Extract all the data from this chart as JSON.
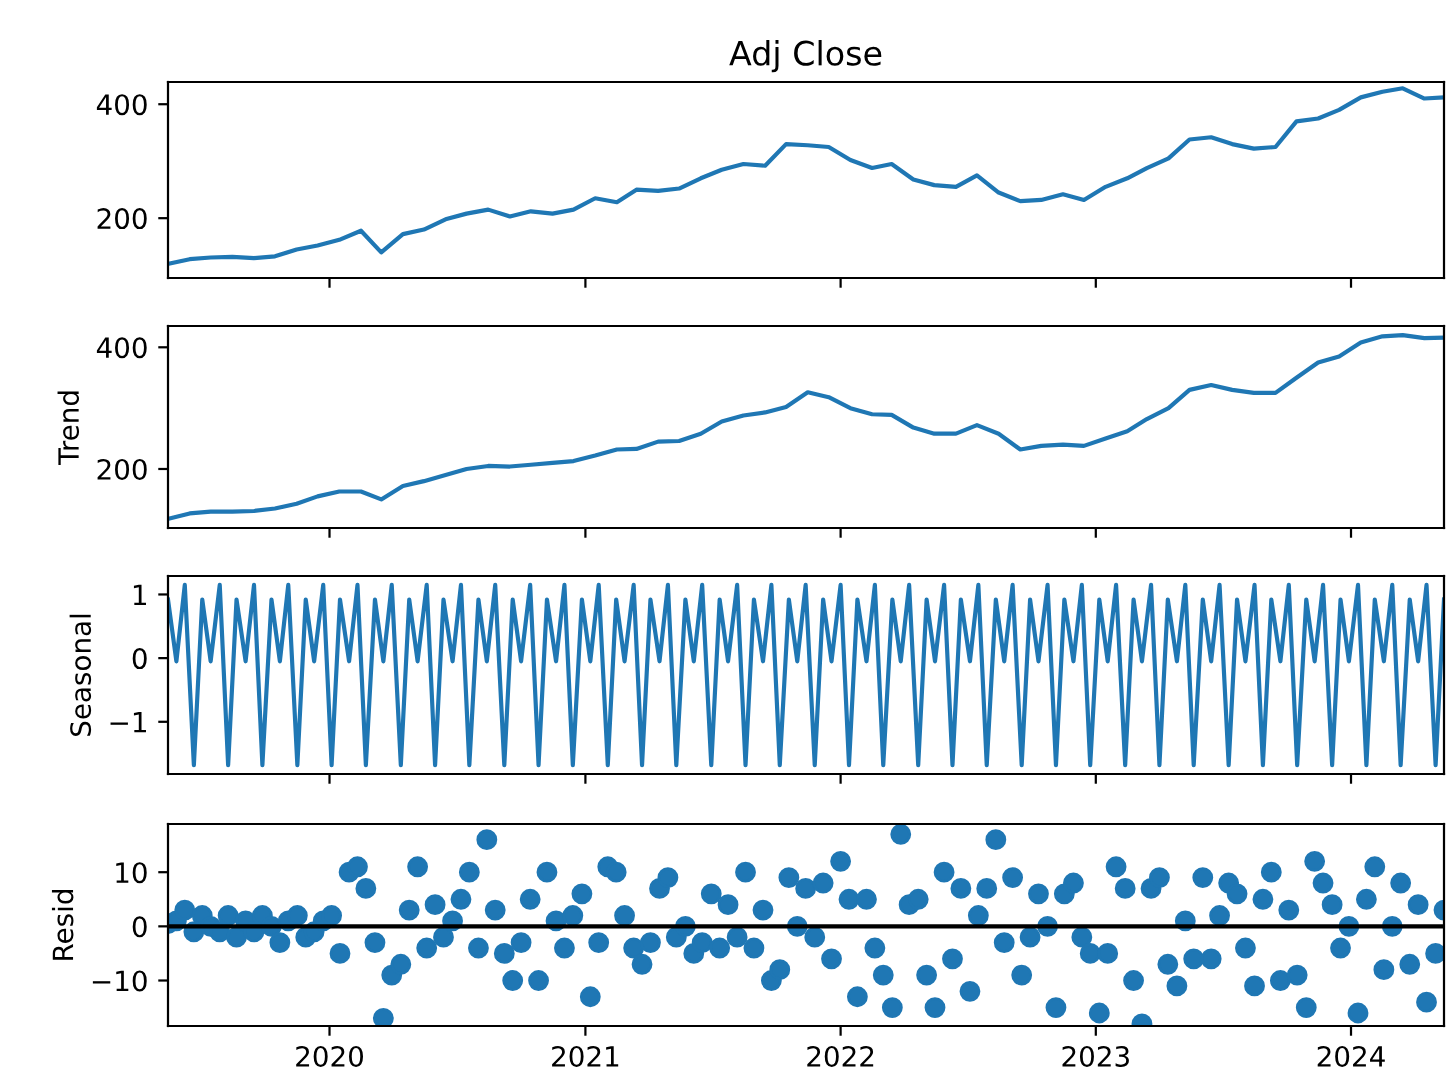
{
  "chart_data": [
    {
      "type": "line",
      "title": "Adj Close",
      "x": [
        "2019-05-15",
        "2019-06-15",
        "2019-07-15",
        "2019-08-15",
        "2019-09-15",
        "2019-10-15",
        "2019-11-15",
        "2019-12-15",
        "2020-01-15",
        "2020-02-15",
        "2020-03-15",
        "2020-04-15",
        "2020-05-15",
        "2020-06-15",
        "2020-07-15",
        "2020-08-15",
        "2020-09-15",
        "2020-10-15",
        "2020-11-15",
        "2020-12-15",
        "2021-01-15",
        "2021-02-15",
        "2021-03-15",
        "2021-04-15",
        "2021-05-15",
        "2021-06-15",
        "2021-07-15",
        "2021-08-15",
        "2021-09-15",
        "2021-10-15",
        "2021-11-15",
        "2021-12-15",
        "2022-01-15",
        "2022-02-15",
        "2022-03-15",
        "2022-04-15",
        "2022-05-15",
        "2022-06-15",
        "2022-07-15",
        "2022-08-15",
        "2022-09-15",
        "2022-10-15",
        "2022-11-15",
        "2022-12-15",
        "2023-01-15",
        "2023-02-15",
        "2023-03-15",
        "2023-04-15",
        "2023-05-15",
        "2023-06-15",
        "2023-07-15",
        "2023-08-15",
        "2023-09-15",
        "2023-10-15",
        "2023-11-15",
        "2023-12-15",
        "2024-01-15",
        "2024-02-15",
        "2024-03-15",
        "2024-04-15",
        "2024-05-13"
      ],
      "series": [
        {
          "color": "#1f77b4",
          "values": [
            120,
            128,
            131,
            132,
            130,
            133,
            145,
            152,
            162,
            178,
            140,
            172,
            180,
            198,
            208,
            215,
            203,
            212,
            208,
            215,
            235,
            228,
            250,
            248,
            252,
            270,
            285,
            295,
            292,
            330,
            328,
            325,
            302,
            288,
            295,
            268,
            258,
            255,
            275,
            245,
            230,
            232,
            242,
            232,
            255,
            270,
            288,
            305,
            338,
            342,
            330,
            322,
            325,
            370,
            375,
            390,
            412,
            422,
            428,
            410,
            412
          ]
        }
      ],
      "xlim": [
        "2019-05-15",
        "2024-05-13"
      ],
      "xticks": [
        "2020",
        "2021",
        "2022",
        "2023",
        "2024"
      ],
      "ylim": [
        95,
        439
      ],
      "yticks": [
        200,
        400
      ],
      "tick_labels": "y"
    },
    {
      "type": "line",
      "ylabel": "Trend",
      "x": [
        "2019-05-15",
        "2019-06-15",
        "2019-07-15",
        "2019-08-15",
        "2019-09-15",
        "2019-10-15",
        "2019-11-15",
        "2019-12-15",
        "2020-01-15",
        "2020-02-15",
        "2020-03-15",
        "2020-04-15",
        "2020-05-15",
        "2020-06-15",
        "2020-07-15",
        "2020-08-15",
        "2020-09-15",
        "2020-10-15",
        "2020-11-15",
        "2020-12-15",
        "2021-01-15",
        "2021-02-15",
        "2021-03-15",
        "2021-04-15",
        "2021-05-15",
        "2021-06-15",
        "2021-07-15",
        "2021-08-15",
        "2021-09-15",
        "2021-10-15",
        "2021-11-15",
        "2021-12-15",
        "2022-01-15",
        "2022-02-15",
        "2022-03-15",
        "2022-04-15",
        "2022-05-15",
        "2022-06-15",
        "2022-07-15",
        "2022-08-15",
        "2022-09-15",
        "2022-10-15",
        "2022-11-15",
        "2022-12-15",
        "2023-01-15",
        "2023-02-15",
        "2023-03-15",
        "2023-04-15",
        "2023-05-15",
        "2023-06-15",
        "2023-07-15",
        "2023-08-15",
        "2023-09-15",
        "2023-10-15",
        "2023-11-15",
        "2023-12-15",
        "2024-01-15",
        "2024-02-15",
        "2024-03-15",
        "2024-04-15",
        "2024-05-13"
      ],
      "series": [
        {
          "color": "#1f77b4",
          "values": [
            118,
            127,
            130,
            130,
            131,
            135,
            143,
            155,
            163,
            163,
            150,
            172,
            180,
            190,
            200,
            205,
            204,
            207,
            210,
            213,
            222,
            232,
            233,
            245,
            246,
            258,
            278,
            288,
            293,
            302,
            326,
            318,
            300,
            290,
            289,
            268,
            258,
            258,
            272,
            258,
            232,
            238,
            240,
            238,
            250,
            262,
            282,
            300,
            330,
            338,
            330,
            325,
            325,
            350,
            375,
            385,
            408,
            418,
            420,
            415,
            416
          ]
        }
      ],
      "xlim": [
        "2019-05-15",
        "2024-05-13"
      ],
      "xticks": [
        "2020",
        "2021",
        "2022",
        "2023",
        "2024"
      ],
      "ylim": [
        103,
        435
      ],
      "yticks": [
        200,
        400
      ],
      "tick_labels": "y"
    },
    {
      "type": "line",
      "ylabel": "Seasonal",
      "x": [
        "2019-05-15",
        "2019-05-27",
        "2019-06-08",
        "2019-06-21",
        "2019-07-03",
        "2019-07-15",
        "2019-07-28",
        "2019-08-09",
        "2019-08-21",
        "2019-09-03",
        "2019-09-15",
        "2019-09-27",
        "2019-10-10",
        "2019-10-22",
        "2019-11-03",
        "2019-11-16",
        "2019-11-28",
        "2019-12-10",
        "2019-12-23",
        "2020-01-04",
        "2020-01-16",
        "2020-01-29",
        "2020-02-10",
        "2020-02-22",
        "2020-03-06",
        "2020-03-18",
        "2020-03-30",
        "2020-04-12",
        "2020-04-24",
        "2020-05-06",
        "2020-05-19",
        "2020-05-31",
        "2020-06-12",
        "2020-06-25",
        "2020-07-07",
        "2020-07-19",
        "2020-08-01",
        "2020-08-13",
        "2020-08-25",
        "2020-09-07",
        "2020-09-19",
        "2020-10-01",
        "2020-10-14",
        "2020-10-26",
        "2020-11-07",
        "2020-11-20",
        "2020-12-02",
        "2020-12-14",
        "2020-12-27",
        "2021-01-08",
        "2021-01-20",
        "2021-02-02",
        "2021-02-14",
        "2021-02-26",
        "2021-03-11",
        "2021-03-23",
        "2021-04-04",
        "2021-04-17",
        "2021-04-29",
        "2021-05-11",
        "2021-05-24",
        "2021-06-05",
        "2021-06-17",
        "2021-06-30",
        "2021-07-12",
        "2021-07-24",
        "2021-08-06",
        "2021-08-18",
        "2021-08-30",
        "2021-09-12",
        "2021-09-24",
        "2021-10-06",
        "2021-10-19",
        "2021-10-31",
        "2021-11-12",
        "2021-11-25",
        "2021-12-07",
        "2021-12-19",
        "2022-01-01",
        "2022-01-13",
        "2022-01-25",
        "2022-02-07",
        "2022-02-19",
        "2022-03-03",
        "2022-03-16",
        "2022-03-28",
        "2022-04-09",
        "2022-04-22",
        "2022-05-04",
        "2022-05-16",
        "2022-05-29",
        "2022-06-10",
        "2022-06-22",
        "2022-07-05",
        "2022-07-17",
        "2022-07-29",
        "2022-08-11",
        "2022-08-23",
        "2022-09-04",
        "2022-09-17",
        "2022-09-29",
        "2022-10-11",
        "2022-10-24",
        "2022-11-05",
        "2022-11-17",
        "2022-11-30",
        "2022-12-12",
        "2022-12-24",
        "2023-01-06",
        "2023-01-18",
        "2023-01-30",
        "2023-02-12",
        "2023-02-24",
        "2023-03-08",
        "2023-03-21",
        "2023-04-02",
        "2023-04-14",
        "2023-04-27",
        "2023-05-09",
        "2023-05-21",
        "2023-06-03",
        "2023-06-15",
        "2023-06-27",
        "2023-07-10",
        "2023-07-22",
        "2023-08-03",
        "2023-08-16",
        "2023-08-28",
        "2023-09-09",
        "2023-09-22",
        "2023-10-04",
        "2023-10-16",
        "2023-10-29",
        "2023-11-10",
        "2023-11-22",
        "2023-12-05",
        "2023-12-17",
        "2023-12-29",
        "2024-01-11",
        "2024-01-23",
        "2024-02-04",
        "2024-02-17",
        "2024-02-29",
        "2024-03-12",
        "2024-03-25",
        "2024-04-06",
        "2024-04-18",
        "2024-05-01",
        "2024-05-13"
      ],
      "series": [
        {
          "color": "#1f77b4",
          "values": [
            0.92,
            -0.05,
            1.15,
            -1.68,
            0.92,
            -0.05,
            1.15,
            -1.68,
            0.92,
            -0.05,
            1.15,
            -1.68,
            0.92,
            -0.05,
            1.15,
            -1.68,
            0.92,
            -0.05,
            1.15,
            -1.68,
            0.92,
            -0.05,
            1.15,
            -1.68,
            0.92,
            -0.05,
            1.15,
            -1.68,
            0.92,
            -0.05,
            1.15,
            -1.68,
            0.92,
            -0.05,
            1.15,
            -1.68,
            0.92,
            -0.05,
            1.15,
            -1.68,
            0.92,
            -0.05,
            1.15,
            -1.68,
            0.92,
            -0.05,
            1.15,
            -1.68,
            0.92,
            -0.05,
            1.15,
            -1.68,
            0.92,
            -0.05,
            1.15,
            -1.68,
            0.92,
            -0.05,
            1.15,
            -1.68,
            0.92,
            -0.05,
            1.15,
            -1.68,
            0.92,
            -0.05,
            1.15,
            -1.68,
            0.92,
            -0.05,
            1.15,
            -1.68,
            0.92,
            -0.05,
            1.15,
            -1.68,
            0.92,
            -0.05,
            1.15,
            -1.68,
            0.92,
            -0.05,
            1.15,
            -1.68,
            0.92,
            -0.05,
            1.15,
            -1.68,
            0.92,
            -0.05,
            1.15,
            -1.68,
            0.92,
            -0.05,
            1.15,
            -1.68,
            0.92,
            -0.05,
            1.15,
            -1.68,
            0.92,
            -0.05,
            1.15,
            -1.68,
            0.92,
            -0.05,
            1.15,
            -1.68,
            0.92,
            -0.05,
            1.15,
            -1.68,
            0.92,
            -0.05,
            1.15,
            -1.68,
            0.92,
            -0.05,
            1.15,
            -1.68,
            0.92,
            -0.05,
            1.15,
            -1.68,
            0.92,
            -0.05,
            1.15,
            -1.68,
            0.92,
            -0.05,
            1.15,
            -1.68,
            0.92,
            -0.05,
            1.15,
            -1.68,
            0.92,
            -0.05,
            1.15,
            -1.68,
            0.92,
            -0.05,
            1.15,
            -1.68,
            0.92,
            -0.05,
            1.15,
            -1.68,
            0.92
          ]
        }
      ],
      "xlim": [
        "2019-05-15",
        "2024-05-13"
      ],
      "xticks": [
        "2020",
        "2021",
        "2022",
        "2023",
        "2024"
      ],
      "ylim": [
        -1.82,
        1.29
      ],
      "yticks": [
        {
          "value": -1,
          "label": "−1"
        },
        0,
        1
      ],
      "tick_labels": "y"
    },
    {
      "type": "scatter",
      "ylabel": "Resid",
      "marker": "circle",
      "x": [
        "2019-05-15",
        "2019-05-27",
        "2019-06-08",
        "2019-06-21",
        "2019-07-03",
        "2019-07-15",
        "2019-07-28",
        "2019-08-09",
        "2019-08-21",
        "2019-09-03",
        "2019-09-15",
        "2019-09-27",
        "2019-10-10",
        "2019-10-22",
        "2019-11-03",
        "2019-11-16",
        "2019-11-28",
        "2019-12-10",
        "2019-12-23",
        "2020-01-04",
        "2020-01-16",
        "2020-01-29",
        "2020-02-10",
        "2020-02-22",
        "2020-03-06",
        "2020-03-18",
        "2020-03-30",
        "2020-04-12",
        "2020-04-24",
        "2020-05-06",
        "2020-05-19",
        "2020-05-31",
        "2020-06-12",
        "2020-06-25",
        "2020-07-07",
        "2020-07-19",
        "2020-08-01",
        "2020-08-13",
        "2020-08-25",
        "2020-09-07",
        "2020-09-19",
        "2020-10-01",
        "2020-10-14",
        "2020-10-26",
        "2020-11-07",
        "2020-11-20",
        "2020-12-02",
        "2020-12-14",
        "2020-12-27",
        "2021-01-08",
        "2021-01-20",
        "2021-02-02",
        "2021-02-14",
        "2021-02-26",
        "2021-03-11",
        "2021-03-23",
        "2021-04-04",
        "2021-04-17",
        "2021-04-29",
        "2021-05-11",
        "2021-05-24",
        "2021-06-05",
        "2021-06-17",
        "2021-06-30",
        "2021-07-12",
        "2021-07-24",
        "2021-08-06",
        "2021-08-18",
        "2021-08-30",
        "2021-09-12",
        "2021-09-24",
        "2021-10-06",
        "2021-10-19",
        "2021-10-31",
        "2021-11-12",
        "2021-11-25",
        "2021-12-07",
        "2021-12-19",
        "2022-01-01",
        "2022-01-13",
        "2022-01-25",
        "2022-02-07",
        "2022-02-19",
        "2022-03-03",
        "2022-03-16",
        "2022-03-28",
        "2022-04-09",
        "2022-04-22",
        "2022-05-04",
        "2022-05-16",
        "2022-05-29",
        "2022-06-10",
        "2022-06-22",
        "2022-07-05",
        "2022-07-17",
        "2022-07-29",
        "2022-08-11",
        "2022-08-23",
        "2022-09-04",
        "2022-09-17",
        "2022-09-29",
        "2022-10-11",
        "2022-10-24",
        "2022-11-05",
        "2022-11-17",
        "2022-11-30",
        "2022-12-12",
        "2022-12-24",
        "2023-01-06",
        "2023-01-18",
        "2023-01-30",
        "2023-02-12",
        "2023-02-24",
        "2023-03-08",
        "2023-03-21",
        "2023-04-02",
        "2023-04-14",
        "2023-04-27",
        "2023-05-09",
        "2023-05-21",
        "2023-06-03",
        "2023-06-15",
        "2023-06-27",
        "2023-07-10",
        "2023-07-22",
        "2023-08-03",
        "2023-08-16",
        "2023-08-28",
        "2023-09-09",
        "2023-09-22",
        "2023-10-04",
        "2023-10-16",
        "2023-10-29",
        "2023-11-10",
        "2023-11-22",
        "2023-12-05",
        "2023-12-17",
        "2023-12-29",
        "2024-01-11",
        "2024-01-23",
        "2024-02-04",
        "2024-02-17",
        "2024-02-29",
        "2024-03-12",
        "2024-03-25",
        "2024-04-06",
        "2024-04-18",
        "2024-05-01",
        "2024-05-13"
      ],
      "series": [
        {
          "color": "#1f77b4",
          "values": [
            0.5,
            1,
            3,
            -1,
            2,
            0,
            -1,
            2,
            -2,
            1,
            -1,
            2,
            0,
            -3,
            1,
            2,
            -2,
            -1,
            1,
            2,
            -5,
            10,
            11,
            7,
            -3,
            -17,
            -9,
            -7,
            3,
            11,
            -4,
            4,
            -2,
            1,
            5,
            10,
            -4,
            16,
            3,
            -5,
            -10,
            -3,
            5,
            -10,
            10,
            1,
            -4,
            2,
            6,
            -13,
            -3,
            11,
            10,
            2,
            -4,
            -7,
            -3,
            7,
            9,
            -2,
            0,
            -5,
            -3,
            6,
            -4,
            4,
            -2,
            10,
            -4,
            3,
            -10,
            -8,
            9,
            0,
            7,
            -2,
            8,
            -6,
            12,
            5,
            -13,
            5,
            -4,
            -9,
            -15,
            17,
            4,
            5,
            -9,
            -15,
            10,
            -6,
            7,
            -12,
            2,
            7,
            16,
            -3,
            9,
            -9,
            -2,
            6,
            0,
            -15,
            6,
            8,
            -2,
            -5,
            -16,
            -5,
            11,
            7,
            -10,
            -18,
            7,
            9,
            -7,
            -11,
            1,
            -6,
            9,
            -6,
            2,
            8,
            6,
            -4,
            -11,
            5,
            10,
            -10,
            3,
            -9,
            -15,
            12,
            8,
            4,
            -4,
            0,
            -16,
            5,
            11,
            -8,
            0,
            8,
            -7,
            4,
            -14,
            -5,
            3
          ]
        }
      ],
      "ref_lines": [
        {
          "axis": "y",
          "value": 0,
          "color": "#000000"
        }
      ],
      "xlim": [
        "2019-05-15",
        "2024-05-13"
      ],
      "xticks": [
        "2020",
        "2021",
        "2022",
        "2023",
        "2024"
      ],
      "ylim": [
        -18.4,
        18.9
      ],
      "yticks": [
        {
          "value": -10,
          "label": "−10"
        },
        0,
        10
      ]
    }
  ]
}
